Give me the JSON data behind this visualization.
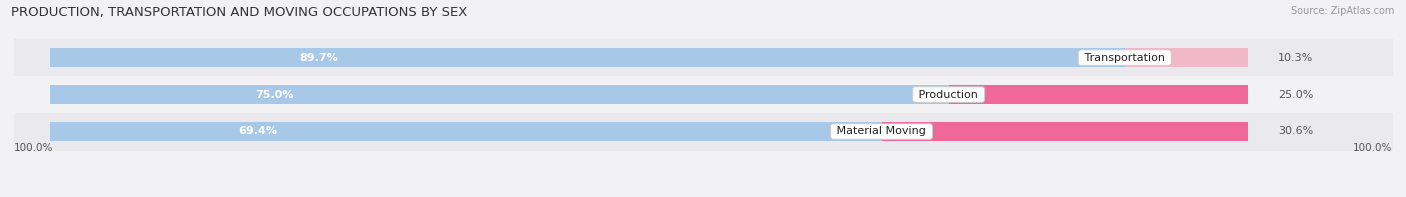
{
  "title": "PRODUCTION, TRANSPORTATION AND MOVING OCCUPATIONS BY SEX",
  "source_text": "Source: ZipAtlas.com",
  "categories": [
    "Transportation",
    "Production",
    "Material Moving"
  ],
  "male_values": [
    89.7,
    75.0,
    69.4
  ],
  "female_values": [
    10.3,
    25.0,
    30.6
  ],
  "male_color": "#a8c8e8",
  "female_colors": [
    "#f0b8c8",
    "#f06898",
    "#f06898"
  ],
  "row_bg_colors": [
    "#eaeaee",
    "#f2f2f5",
    "#eaeaee"
  ],
  "title_fontsize": 9.5,
  "bar_label_fontsize": 8,
  "legend_fontsize": 8.5,
  "left_label": "100.0%",
  "right_label": "100.0%"
}
